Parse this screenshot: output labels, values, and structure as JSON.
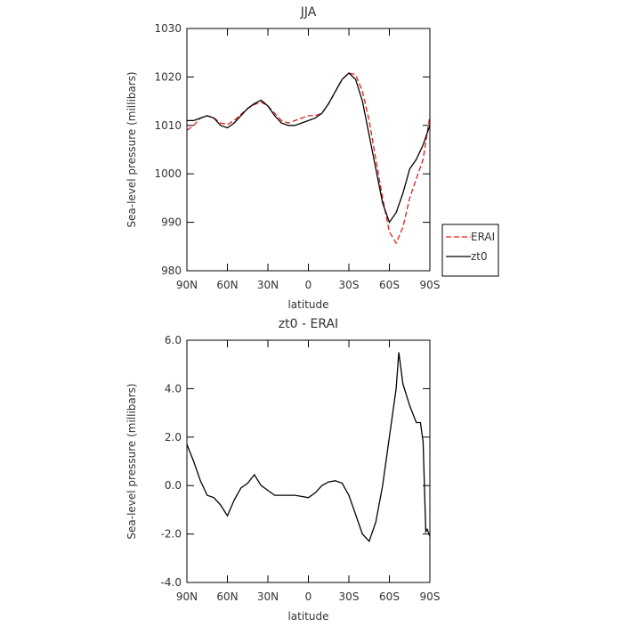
{
  "chart_data": [
    {
      "type": "line",
      "title": "JJA",
      "ylabel": "Sea-level pressure (millibars)",
      "xlabel": "latitude",
      "x": [
        90,
        85,
        80,
        75,
        70,
        65,
        60,
        55,
        50,
        45,
        40,
        35,
        30,
        25,
        20,
        15,
        10,
        5,
        0,
        -5,
        -10,
        -15,
        -20,
        -25,
        -30,
        -35,
        -40,
        -45,
        -50,
        -55,
        -60,
        -65,
        -70,
        -75,
        -80,
        -85,
        -90
      ],
      "xlim": [
        90,
        -90
      ],
      "xticks": [
        {
          "value": 90,
          "label": "90N"
        },
        {
          "value": 60,
          "label": "60N"
        },
        {
          "value": 30,
          "label": "30N"
        },
        0,
        {
          "value": -30,
          "label": "30S"
        },
        {
          "value": -60,
          "label": "60S"
        },
        {
          "value": -90,
          "label": "90S"
        }
      ],
      "ylim": [
        980,
        1030
      ],
      "yticks": [
        980,
        990,
        1000,
        1010,
        1020,
        1030
      ],
      "legend": "right",
      "series": [
        {
          "name": "ERAI",
          "color": "#e41a1c",
          "style": "dashed",
          "values": [
            1009,
            1010,
            1011.5,
            1012,
            1011.5,
            1010.5,
            1010.2,
            1011,
            1012.3,
            1013.5,
            1014.3,
            1014.8,
            1014,
            1012.5,
            1011,
            1010.5,
            1011,
            1011.5,
            1012,
            1012,
            1012.5,
            1014.5,
            1017,
            1019.5,
            1020.8,
            1020.5,
            1017,
            1011,
            1003,
            995,
            988,
            985.7,
            989,
            995,
            999,
            1003,
            1012
          ]
        },
        {
          "name": "zt0",
          "color": "#000000",
          "style": "solid",
          "values": [
            1011,
            1011,
            1011.5,
            1012,
            1011.5,
            1010,
            1009.5,
            1010.5,
            1012,
            1013.5,
            1014.5,
            1015.2,
            1014,
            1012,
            1010.5,
            1010,
            1010,
            1010.5,
            1011,
            1011.5,
            1012.5,
            1014.5,
            1017,
            1019.5,
            1020.8,
            1019.5,
            1015,
            1008,
            1001,
            994,
            990,
            992,
            996,
            1001,
            1003,
            1006,
            1010
          ]
        }
      ]
    },
    {
      "type": "line",
      "title": "zt0 - ERAI",
      "ylabel": "Sea-level pressure (millibars)",
      "xlabel": "latitude",
      "x": [
        90,
        85,
        80,
        75,
        70,
        65,
        60,
        55,
        50,
        45,
        40,
        35,
        30,
        25,
        20,
        15,
        10,
        5,
        0,
        -5,
        -10,
        -15,
        -20,
        -25,
        -30,
        -35,
        -40,
        -45,
        -50,
        -55,
        -60,
        -65,
        -67,
        -70,
        -75,
        -80,
        -83,
        -85,
        -87,
        -88,
        -90
      ],
      "xlim": [
        90,
        -90
      ],
      "xticks": [
        {
          "value": 90,
          "label": "90N"
        },
        {
          "value": 60,
          "label": "60N"
        },
        {
          "value": 30,
          "label": "30N"
        },
        0,
        {
          "value": -30,
          "label": "30S"
        },
        {
          "value": -60,
          "label": "60S"
        },
        {
          "value": -90,
          "label": "90S"
        }
      ],
      "ylim": [
        -4,
        6
      ],
      "yticks": [
        {
          "value": -4,
          "label": "-4.0"
        },
        {
          "value": -2,
          "label": "-2.0"
        },
        {
          "value": 0,
          "label": "0.0"
        },
        {
          "value": 2,
          "label": "2.0"
        },
        {
          "value": 4,
          "label": "4.0"
        },
        {
          "value": 6,
          "label": "6.0"
        }
      ],
      "series": [
        {
          "color": "#000000",
          "style": "solid",
          "values": [
            1.7,
            1.0,
            0.2,
            -0.4,
            -0.5,
            -0.8,
            -1.25,
            -0.6,
            -0.1,
            0.1,
            0.45,
            0.0,
            -0.2,
            -0.4,
            -0.4,
            -0.4,
            -0.4,
            -0.45,
            -0.5,
            -0.3,
            0.0,
            0.15,
            0.2,
            0.1,
            -0.4,
            -1.2,
            -2.0,
            -2.3,
            -1.5,
            0.0,
            2.0,
            4.0,
            5.5,
            4.2,
            3.3,
            2.6,
            2.6,
            1.8,
            -1.9,
            -1.8,
            -2.1
          ]
        }
      ]
    }
  ]
}
